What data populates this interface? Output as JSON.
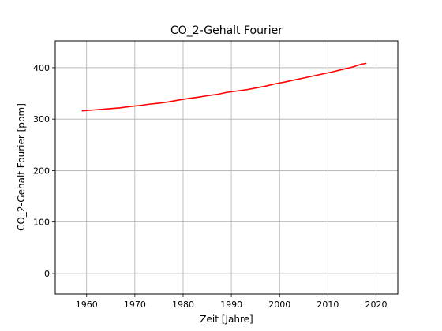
{
  "chart_data": {
    "type": "line",
    "title": "CO_2-Gehalt Fourier",
    "xlabel": "Zeit [Jahre]",
    "ylabel": "CO_2-Gehalt Fourier [ppm]",
    "xlim": [
      1953.5,
      2024.5
    ],
    "ylim": [
      -40,
      452
    ],
    "xticks": [
      1960,
      1970,
      1980,
      1990,
      2000,
      2010,
      2020
    ],
    "yticks": [
      0,
      100,
      200,
      300,
      400
    ],
    "grid": true,
    "series": [
      {
        "color": "#ff0000",
        "x": [
          1959,
          1961,
          1963,
          1965,
          1967,
          1969,
          1971,
          1973,
          1975,
          1977,
          1979,
          1981,
          1983,
          1985,
          1987,
          1989,
          1991,
          1993,
          1995,
          1997,
          1999,
          2001,
          2003,
          2005,
          2007,
          2009,
          2011,
          2013,
          2015,
          2017,
          2018
        ],
        "y": [
          316,
          317.5,
          319,
          320.5,
          322,
          324.5,
          326.5,
          329,
          331,
          333.5,
          337,
          340,
          342.5,
          345.5,
          348,
          352,
          354.5,
          357,
          360.5,
          364,
          368.5,
          372,
          376,
          380,
          384,
          388,
          392,
          396.5,
          401,
          407,
          408.5
        ]
      }
    ]
  }
}
